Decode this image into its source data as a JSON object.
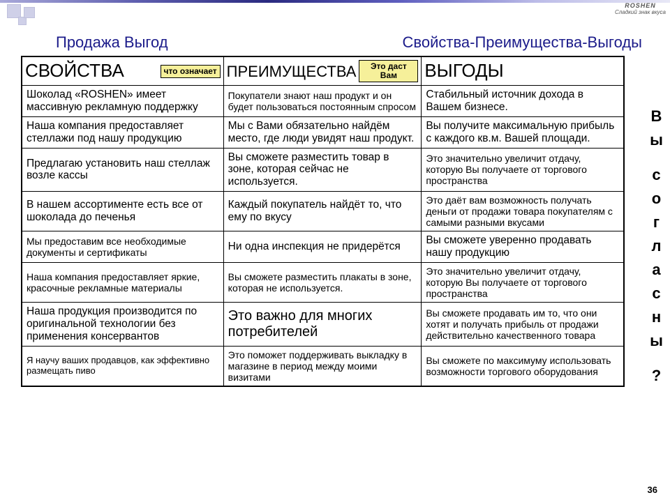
{
  "header": {
    "left": "Продажа Выгод",
    "right": "Свойства-Преимущества-Выгоды"
  },
  "table_headers": {
    "col1": "СВОЙСТВА",
    "col1_tag": "что\nозначает",
    "col2": "ПРЕИМУЩЕСТВА",
    "col2_tag": "Это даст\nВам",
    "col3": "ВЫГОДЫ"
  },
  "rows": [
    {
      "c1": "Шоколад «ROSHEN» имеет массивную рекламную поддержку",
      "c2": "Покупатели знают наш продукт и он будет пользоваться постоянным спросом",
      "c3": "Стабильный источник дохода в Вашем бизнесе.",
      "c2_size": "small"
    },
    {
      "c1": "Наша компания предоставляет стеллажи под нашу продукцию",
      "c2": "Мы с Вами обязательно найдём место, где люди увидят наш продукт.",
      "c3": "Вы получите максимальную прибыль с каждого кв.м. Вашей площади."
    },
    {
      "c1": "Предлагаю установить наш стеллаж возле кассы",
      "c2": "Вы сможете разместить товар в зоне, которая сейчас не используется.",
      "c3": "Это значительно увеличит отдачу, которую Вы получаете от торгового пространства",
      "c3_size": "small"
    },
    {
      "c1": "В нашем ассортименте есть все от шоколада до печенья",
      "c2": "Каждый покупатель найдёт то, что ему по вкусу",
      "c3": "Это даёт вам возможность получать деньги от продажи товара покупателям с самыми разными вкусами",
      "c3_size": "small"
    },
    {
      "c1": "Мы предоставим все необходимые документы и сертификаты",
      "c2": "Ни одна инспекция не придерётся",
      "c3": "Вы сможете уверенно продавать нашу продукцию",
      "c1_size": "small"
    },
    {
      "c1": "Наша компания предоставляет яркие, красочные рекламные материалы",
      "c2": "Вы сможете разместить плакаты в зоне, которая не используется.",
      "c3": "Это значительно увеличит отдачу, которую Вы получаете от торгового пространства",
      "c1_size": "small",
      "c2_size": "small",
      "c3_size": "small"
    },
    {
      "c1": "Наша продукция производится по оригинальной технологии без применения консервантов",
      "c2": "Это важно для многих потребителей",
      "c3": "Вы сможете продавать им то, что они хотят и получать прибыль от продажи действительно качественного товара",
      "c3_size": "small",
      "c2_big": true
    },
    {
      "c1": "Я научу ваших продавцов, как эффективно размещать пиво",
      "c2": "Это поможет поддерживать выкладку в магазине в период между моими визитами",
      "c3": "Вы сможете по максимуму использовать возможности торгового оборудования",
      "c1_size": "xsmall",
      "c2_size": "small",
      "c3_size": "small"
    }
  ],
  "side_chars": [
    "В",
    "ы",
    "",
    "с",
    "о",
    "г",
    "л",
    "а",
    "с",
    "н",
    "ы",
    "",
    "?"
  ],
  "page_number": "36",
  "logo": {
    "brand": "ROSHEN",
    "sub": "Сладкий\nзнак\nвкуса"
  },
  "colors": {
    "heading_color": "#1b1b8a",
    "tag_bg": "#f6f09a",
    "deco_sq": "#cfd0e8"
  }
}
